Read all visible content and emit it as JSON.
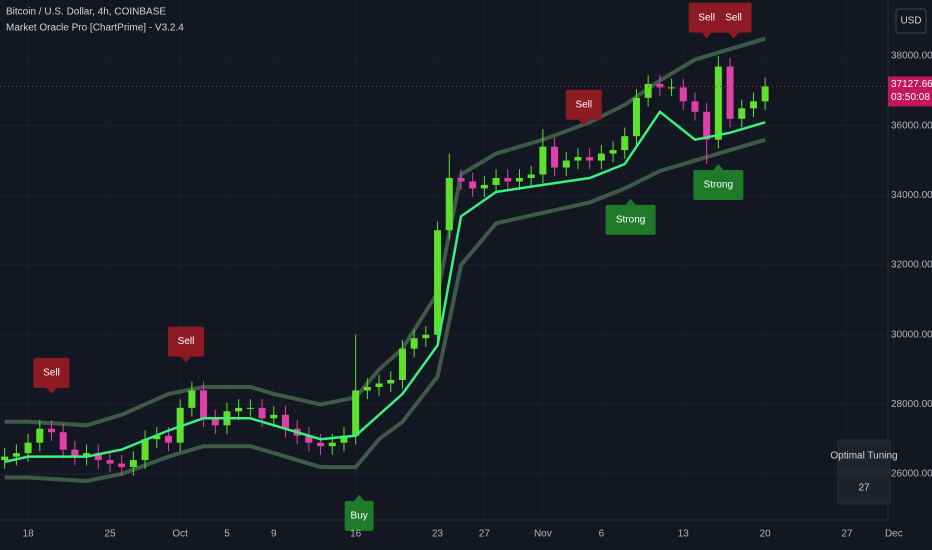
{
  "chart_data": {
    "type": "candlestick",
    "title": "Bitcoin / U.S. Dollar, 4h, COINBASE",
    "subtitle": "Market Oracle Pro [ChartPrime] - V3.2.4",
    "currency": "USD",
    "ylim": [
      24680,
      39610
    ],
    "yticks": [
      {
        "value": 26000,
        "label": "26000.00"
      },
      {
        "value": 28000,
        "label": "28000.00"
      },
      {
        "value": 30000,
        "label": "30000.00"
      },
      {
        "value": 32000,
        "label": "32000.00"
      },
      {
        "value": 34000,
        "label": "34000.00"
      },
      {
        "value": 36000,
        "label": "36000.00"
      },
      {
        "value": 38000,
        "label": "38000.00"
      }
    ],
    "xlim": [
      -2.4,
      73.5
    ],
    "xticks": [
      {
        "value": 0,
        "label": "18"
      },
      {
        "value": 7,
        "label": "25"
      },
      {
        "value": 13,
        "label": "Oct"
      },
      {
        "value": 17,
        "label": "5"
      },
      {
        "value": 21,
        "label": "9"
      },
      {
        "value": 28,
        "label": "16"
      },
      {
        "value": 35,
        "label": "23"
      },
      {
        "value": 39,
        "label": "27"
      },
      {
        "value": 44,
        "label": "Nov"
      },
      {
        "value": 49,
        "label": "6"
      },
      {
        "value": 56,
        "label": "13"
      },
      {
        "value": 63,
        "label": "20"
      },
      {
        "value": 70,
        "label": "27"
      },
      {
        "value": 74,
        "label": "Dec"
      }
    ],
    "up_color": "#5ee02d",
    "down_color": "#e040a8",
    "x": [
      -2,
      -1,
      0,
      1,
      2,
      3,
      4,
      5,
      6,
      7,
      8,
      9,
      10,
      11,
      12,
      13,
      14,
      15,
      16,
      17,
      18,
      19,
      20,
      21,
      22,
      23,
      24,
      25,
      26,
      27,
      28,
      29,
      30,
      31,
      32,
      33,
      34,
      35,
      36,
      37,
      38,
      39,
      40,
      41,
      42,
      43,
      44,
      45,
      46,
      47,
      48,
      49,
      50,
      51,
      52,
      53,
      54,
      55,
      56,
      57,
      58,
      59,
      60,
      61,
      62,
      63
    ],
    "open": [
      26400,
      26500,
      26600,
      26900,
      27300,
      27200,
      26700,
      26500,
      26600,
      26400,
      26300,
      26200,
      26400,
      27000,
      27100,
      26900,
      27900,
      28400,
      27600,
      27400,
      27800,
      27900,
      27900,
      27600,
      27700,
      27300,
      27100,
      26900,
      26800,
      26900,
      27100,
      28400,
      28500,
      28600,
      28700,
      29600,
      29900,
      30000,
      33000,
      34500,
      34400,
      34200,
      34300,
      34500,
      34400,
      34500,
      34600,
      35400,
      34800,
      35000,
      35100,
      35000,
      35200,
      35300,
      35700,
      36800,
      37200,
      37100,
      37100,
      36700,
      36400,
      35600,
      37700,
      36200,
      36500,
      36700
    ],
    "high": [
      26750,
      26850,
      27150,
      27550,
      27550,
      27450,
      26950,
      26850,
      26850,
      26650,
      26550,
      26650,
      27250,
      27350,
      27350,
      28150,
      28650,
      28650,
      27850,
      28050,
      28150,
      28150,
      28150,
      27950,
      27950,
      27550,
      27350,
      27150,
      27150,
      27350,
      30000,
      28750,
      28850,
      28950,
      29850,
      30150,
      30250,
      33250,
      35200,
      34750,
      34650,
      34550,
      34750,
      34750,
      34750,
      34850,
      35900,
      35650,
      35250,
      35350,
      35350,
      35450,
      35550,
      35950,
      37050,
      37450,
      37450,
      37350,
      37350,
      36950,
      36650,
      38000,
      37950,
      36750,
      36950,
      37380
    ],
    "low": [
      26150,
      26250,
      26350,
      26650,
      26950,
      26450,
      26250,
      26250,
      26150,
      26050,
      25950,
      25950,
      26150,
      26750,
      26650,
      26650,
      27650,
      27350,
      27150,
      27150,
      27550,
      27650,
      27350,
      27350,
      27050,
      26850,
      26650,
      26550,
      26550,
      26650,
      26850,
      28150,
      28250,
      28350,
      28450,
      29350,
      29650,
      29750,
      32750,
      34150,
      33950,
      33950,
      34050,
      34150,
      34150,
      34250,
      34350,
      34550,
      34550,
      34750,
      34750,
      34750,
      34950,
      35050,
      35450,
      36550,
      36850,
      36850,
      36450,
      36150,
      34900,
      35350,
      35950,
      35950,
      36250,
      36450
    ],
    "close": [
      26500,
      26600,
      26900,
      27300,
      27200,
      26700,
      26500,
      26600,
      26400,
      26300,
      26200,
      26400,
      27000,
      27100,
      26900,
      27900,
      28400,
      27600,
      27400,
      27800,
      27900,
      27900,
      27600,
      27700,
      27300,
      27100,
      26900,
      26800,
      26900,
      27100,
      28400,
      28500,
      28600,
      28700,
      29600,
      29900,
      30000,
      33000,
      34500,
      34400,
      34200,
      34300,
      34500,
      34400,
      34500,
      34600,
      35400,
      34800,
      35000,
      35100,
      35000,
      35200,
      35300,
      35700,
      36800,
      37200,
      37100,
      37100,
      36700,
      36400,
      35600,
      37700,
      36200,
      36500,
      36700,
      37130
    ],
    "bands": {
      "x": [
        -2,
        0,
        5,
        8,
        12,
        15,
        19,
        21,
        25,
        28,
        30,
        32,
        35,
        37,
        40,
        44,
        48,
        51,
        54,
        57,
        60,
        63
      ],
      "ma": [
        26350,
        26500,
        26500,
        26700,
        27250,
        27600,
        27600,
        27400,
        27000,
        27100,
        27700,
        28300,
        29700,
        33400,
        34100,
        34300,
        34500,
        34900,
        36400,
        35600,
        35800,
        36100
      ],
      "upper": [
        27500,
        27500,
        27400,
        27700,
        28300,
        28500,
        28500,
        28300,
        28000,
        28200,
        29000,
        29600,
        31200,
        34600,
        35200,
        35600,
        36100,
        36600,
        37300,
        37900,
        38200,
        38500
      ],
      "lower": [
        25900,
        25900,
        25800,
        26000,
        26500,
        26800,
        26800,
        26600,
        26200,
        26200,
        27000,
        27500,
        28800,
        32000,
        33200,
        33500,
        33800,
        34200,
        34700,
        35000,
        35300,
        35600
      ],
      "ma_color": "#3af07e",
      "band_color": "#4a6a52"
    },
    "signals": [
      {
        "label": "Sell",
        "x": 2,
        "y": 28300,
        "side": "above",
        "color": "#8e1a24"
      },
      {
        "label": "Sell",
        "x": 13.5,
        "y": 29200,
        "side": "above",
        "color": "#8e1a24"
      },
      {
        "label": "Buy",
        "x": 28.3,
        "y": 25400,
        "side": "below",
        "color": "#1e7a28"
      },
      {
        "label": "Sell",
        "x": 47.5,
        "y": 36000,
        "side": "above",
        "color": "#8e1a24"
      },
      {
        "label": "Strong",
        "x": 51.5,
        "y": 33900,
        "side": "below",
        "color": "#1e7a28"
      },
      {
        "label": "Sell",
        "x": 58,
        "y": 38500,
        "side": "above",
        "color": "#8e1a24"
      },
      {
        "label": "Sell",
        "x": 60.3,
        "y": 38500,
        "side": "above",
        "color": "#8e1a24"
      },
      {
        "label": "Strong",
        "x": 59,
        "y": 34900,
        "side": "below",
        "color": "#1e7a28"
      }
    ],
    "last_price": 37127.66,
    "countdown": "03:50:08",
    "tuning": {
      "title": "Optimal Tuning",
      "value": 27
    }
  }
}
